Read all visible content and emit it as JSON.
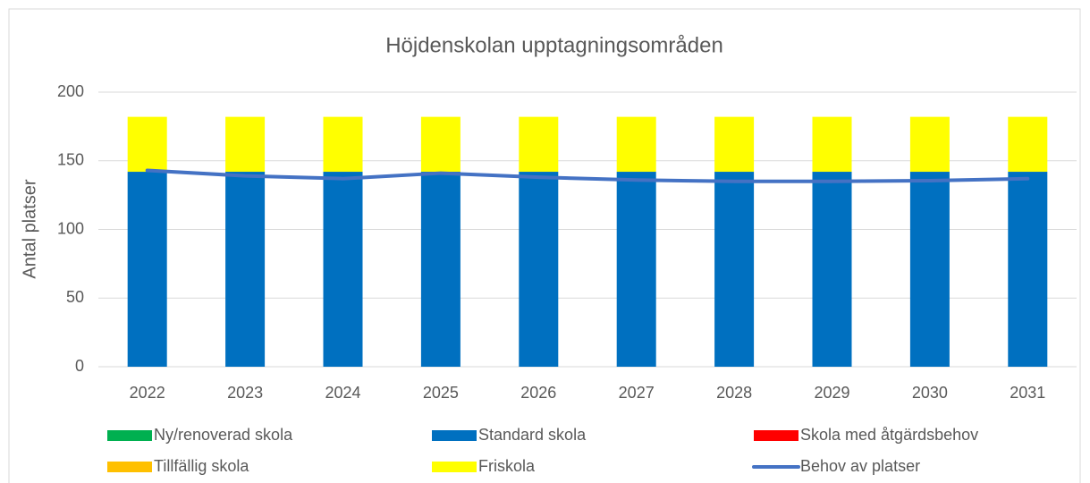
{
  "chart_data": {
    "type": "bar",
    "stacked": true,
    "title": "Höjdenskolan upptagningsområden",
    "y_label": "Antal platser",
    "categories": [
      "2022",
      "2023",
      "2024",
      "2025",
      "2026",
      "2027",
      "2028",
      "2029",
      "2030",
      "2031"
    ],
    "series": [
      {
        "name": "Ny/renoverad skola",
        "color": "#00b050",
        "values": [
          0,
          0,
          0,
          0,
          0,
          0,
          0,
          0,
          0,
          0
        ]
      },
      {
        "name": "Standard skola",
        "color": "#0070c0",
        "values": [
          142,
          142,
          142,
          142,
          142,
          142,
          142,
          142,
          142,
          142
        ]
      },
      {
        "name": "Skola med åtgärdsbehov",
        "color": "#ff0000",
        "values": [
          0,
          0,
          0,
          0,
          0,
          0,
          0,
          0,
          0,
          0
        ]
      },
      {
        "name": "Tillfällig skola",
        "color": "#ffc000",
        "values": [
          0,
          0,
          0,
          0,
          0,
          0,
          0,
          0,
          0,
          0
        ]
      },
      {
        "name": "Friskola",
        "color": "#ffff00",
        "values": [
          40,
          40,
          40,
          40,
          40,
          40,
          40,
          40,
          40,
          40
        ]
      },
      {
        "name": "Behov av platser",
        "color": "#4472c4",
        "type": "line",
        "values": [
          143,
          139,
          137,
          141,
          138,
          136,
          135,
          135,
          135.5,
          137
        ]
      }
    ],
    "ylim": [
      0,
      200
    ],
    "yticks": [
      0,
      50,
      100,
      150,
      200
    ],
    "grid": true,
    "legend": "bottom"
  }
}
